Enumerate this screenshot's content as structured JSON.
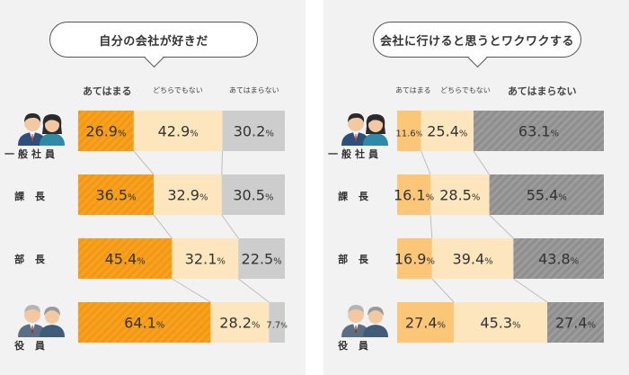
{
  "chart_data": [
    {
      "type": "bar",
      "orientation": "horizontal",
      "stacked": true,
      "title": "自分の会社が好きだ",
      "categories": [
        "一般社員",
        "課 長",
        "部 長",
        "役 員"
      ],
      "series": [
        {
          "name": "あてはまる",
          "values": [
            26.9,
            36.5,
            45.4,
            64.1
          ]
        },
        {
          "name": "どちらでもない",
          "values": [
            42.9,
            32.9,
            32.1,
            28.2
          ]
        },
        {
          "name": "あてはまらない",
          "values": [
            30.2,
            30.5,
            22.5,
            7.7
          ]
        }
      ],
      "xlim": [
        0,
        100
      ],
      "legend_position": "top"
    },
    {
      "type": "bar",
      "orientation": "horizontal",
      "stacked": true,
      "title": "会社に行けると思うとワクワクする",
      "categories": [
        "一般社員",
        "課 長",
        "部 長",
        "役 員"
      ],
      "series": [
        {
          "name": "あてはまる",
          "values": [
            11.6,
            16.1,
            16.9,
            27.4
          ]
        },
        {
          "name": "どちらでもない",
          "values": [
            25.4,
            28.5,
            39.4,
            45.3
          ]
        },
        {
          "name": "あてはまらない",
          "values": [
            63.1,
            55.4,
            43.8,
            27.4
          ]
        }
      ],
      "xlim": [
        0,
        100
      ],
      "legend_position": "top"
    }
  ],
  "unit_symbol": "%",
  "colors": {
    "agree_primary": "#f7a21b",
    "agree_light": "#fcc679",
    "neutral": "#fde6bd",
    "disagree_light": "#cdcdcd",
    "disagree_dark": "#8f8f8f",
    "panel_bg": "#f2f2f2"
  },
  "icons": [
    "staff-avatars-icon",
    "executive-avatars-icon"
  ]
}
